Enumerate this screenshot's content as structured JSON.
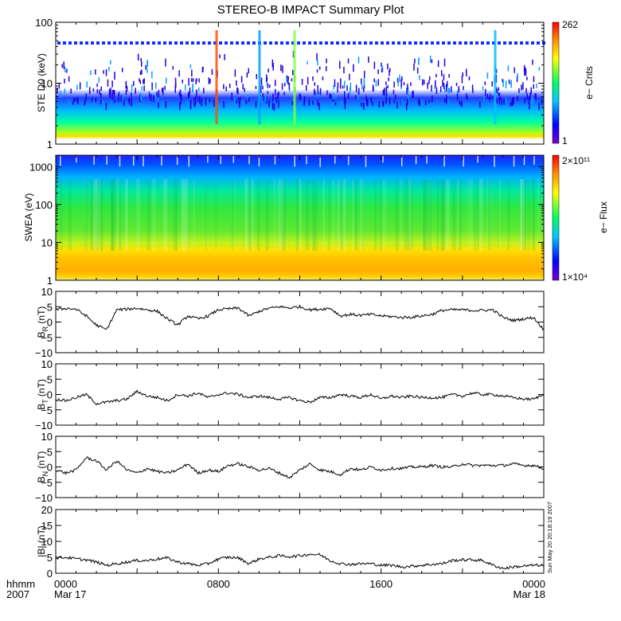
{
  "title": "STEREO-B IMPACT Summary Plot",
  "timestamp": "Sun May 20 20:18:19 2007",
  "x_axis": {
    "label_row1": "hhmm",
    "label_row2": "2007",
    "ticks": [
      {
        "value": "0000",
        "date": "Mar 17"
      },
      {
        "value": "0800",
        "date": ""
      },
      {
        "value": "1600",
        "date": ""
      },
      {
        "value": "0000",
        "date": "Mar 18"
      }
    ]
  },
  "chart_data": [
    {
      "type": "heatmap",
      "id": "ste",
      "ylabel": "STE D0 (keV)",
      "yscale": "log",
      "ylim": [
        1,
        100
      ],
      "yticks": [
        "1",
        "10",
        "100"
      ],
      "colorbar": {
        "label": "e− Cnts",
        "max": "262",
        "min": "1"
      }
    },
    {
      "type": "heatmap",
      "id": "swea",
      "ylabel": "SWEA (eV)",
      "yscale": "log",
      "ylim": [
        1,
        2000
      ],
      "yticks": [
        "1",
        "10",
        "100",
        "1000"
      ],
      "colorbar": {
        "label": "e− Flux",
        "max": "2×10¹¹",
        "min": "1×10⁴"
      }
    },
    {
      "type": "line",
      "id": "br",
      "ylabel_main": "B",
      "ylabel_sub": "R",
      "ylabel_unit": " (nT)",
      "ylim": [
        -10,
        10
      ],
      "yticks": [
        "−10",
        "−5",
        "0",
        "5",
        "10"
      ],
      "x_hours": [
        0,
        0.5,
        1,
        1.5,
        2,
        2.5,
        3,
        3.5,
        4,
        4.5,
        5,
        5.5,
        6,
        6.5,
        7,
        7.5,
        8,
        8.5,
        9,
        9.5,
        10,
        10.5,
        11,
        11.5,
        12,
        12.5,
        13,
        13.5,
        14,
        14.5,
        15,
        15.5,
        16,
        16.5,
        17,
        17.5,
        18,
        18.5,
        19,
        19.5,
        20,
        20.5,
        21,
        21.5,
        22,
        22.5,
        23,
        23.5,
        24
      ],
      "values": [
        4,
        4.5,
        4.2,
        2,
        -1,
        -2.5,
        4,
        4.2,
        4.5,
        4,
        3.5,
        1,
        -1,
        2,
        1,
        2,
        4,
        4.3,
        4.5,
        2,
        3.5,
        4.5,
        5,
        4.6,
        5,
        4,
        4.2,
        4.5,
        2,
        2.5,
        2.2,
        2.5,
        2,
        1.8,
        1.5,
        1.6,
        2,
        2.5,
        3.8,
        4,
        4,
        3.8,
        3.8,
        4,
        1.5,
        0.5,
        1,
        1.5,
        -2.5
      ]
    },
    {
      "type": "line",
      "id": "bt",
      "ylabel_main": "B",
      "ylabel_sub": "T",
      "ylabel_unit": " (nT)",
      "ylim": [
        -10,
        10
      ],
      "yticks": [
        "−10",
        "−5",
        "0",
        "5",
        "10"
      ],
      "x_hours": [
        0,
        0.5,
        1,
        1.5,
        2,
        2.5,
        3,
        3.5,
        4,
        4.5,
        5,
        5.5,
        6,
        6.5,
        7,
        7.5,
        8,
        8.5,
        9,
        9.5,
        10,
        10.5,
        11,
        11.5,
        12,
        12.5,
        13,
        13.5,
        14,
        14.5,
        15,
        15.5,
        16,
        16.5,
        17,
        17.5,
        18,
        18.5,
        19,
        19.5,
        20,
        20.5,
        21,
        21.5,
        22,
        22.5,
        23,
        23.5,
        24
      ],
      "values": [
        -1.5,
        -2,
        -1,
        0,
        -3,
        -2.5,
        -2,
        -1.5,
        1,
        -0.5,
        -1,
        -2,
        0,
        -0.5,
        0.5,
        -1,
        0,
        0.5,
        0,
        -1,
        -0.5,
        -1,
        -1.5,
        -1,
        -2,
        -2.5,
        -1,
        -1,
        0,
        -0.5,
        -1,
        0,
        -1.5,
        -0.5,
        -1,
        -0.5,
        -1,
        -1,
        -1,
        0,
        -0.5,
        0.5,
        0,
        0,
        -0.5,
        -1,
        -1.5,
        -1.5,
        0
      ]
    },
    {
      "type": "line",
      "id": "bn",
      "ylabel_main": "B",
      "ylabel_sub": "N",
      "ylabel_unit": " (nT)",
      "ylim": [
        -10,
        10
      ],
      "yticks": [
        "−10",
        "−5",
        "0",
        "5",
        "10"
      ],
      "x_hours": [
        0,
        0.5,
        1,
        1.5,
        2,
        2.5,
        3,
        3.5,
        4,
        4.5,
        5,
        5.5,
        6,
        6.5,
        7,
        7.5,
        8,
        8.5,
        9,
        9.5,
        10,
        10.5,
        11,
        11.5,
        12,
        12.5,
        13,
        13.5,
        14,
        14.5,
        15,
        15.5,
        16,
        16.5,
        17,
        17.5,
        18,
        18.5,
        19,
        19.5,
        20,
        20.5,
        21,
        21.5,
        22,
        22.5,
        23,
        23.5,
        24
      ],
      "values": [
        -1,
        -2,
        -1,
        3,
        2,
        -1,
        2,
        -1,
        -2,
        -0.5,
        -1.5,
        -2,
        -1,
        1,
        -2,
        -1,
        -1.5,
        0.5,
        1,
        0,
        -1,
        -0.5,
        -2,
        -3.5,
        -1,
        1,
        -1,
        -1.5,
        -2.5,
        -0.5,
        -1,
        0,
        -1,
        -0.5,
        -0.5,
        0,
        0,
        0.5,
        0,
        0,
        1,
        0.5,
        0.5,
        0.5,
        0.5,
        1,
        0.5,
        0.5,
        -0.5
      ]
    },
    {
      "type": "line",
      "id": "bmag",
      "ylabel_main": "|B| (nT)",
      "ylabel_sub": "",
      "ylabel_unit": "",
      "ylim": [
        0,
        20
      ],
      "yticks": [
        "0",
        "5",
        "10",
        "15",
        "20"
      ],
      "x_hours": [
        0,
        0.5,
        1,
        1.5,
        2,
        2.5,
        3,
        3.5,
        4,
        4.5,
        5,
        5.5,
        6,
        6.5,
        7,
        7.5,
        8,
        8.5,
        9,
        9.5,
        10,
        10.5,
        11,
        11.5,
        12,
        12.5,
        13,
        13.5,
        14,
        14.5,
        15,
        15.5,
        16,
        16.5,
        17,
        17.5,
        18,
        18.5,
        19,
        19.5,
        20,
        20.5,
        21,
        21.5,
        22,
        22.5,
        23,
        23.5,
        24
      ],
      "values": [
        4.8,
        5,
        4.5,
        4.2,
        3.5,
        2.5,
        3,
        3.5,
        4,
        4,
        4.5,
        4.8,
        3.5,
        3,
        2.5,
        3,
        4.5,
        5,
        4.8,
        3,
        4.5,
        5,
        5.5,
        5.2,
        5.5,
        6,
        5.8,
        4,
        3,
        2.8,
        3,
        3,
        2.5,
        2.5,
        2,
        2.2,
        2.5,
        2.8,
        3,
        4,
        4.2,
        4.2,
        4,
        2.5,
        1.5,
        2,
        2.2,
        2.5,
        2.5
      ]
    }
  ]
}
